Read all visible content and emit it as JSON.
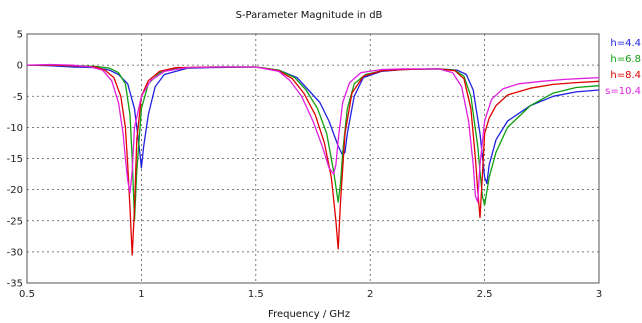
{
  "chart_data": {
    "type": "line",
    "title": "S-Parameter Magnitude in dB",
    "xlabel": "Frequency / GHz",
    "ylabel": "",
    "xlim": [
      0.5,
      3
    ],
    "ylim": [
      -35,
      5
    ],
    "xticks": [
      0.5,
      1,
      1.5,
      2,
      2.5,
      3
    ],
    "xtick_labels": [
      "0.5",
      "1",
      "1.5",
      "2",
      "2.5",
      "3"
    ],
    "yticks": [
      5,
      0,
      -5,
      -10,
      -15,
      -20,
      -25,
      -30,
      -35
    ],
    "ytick_labels": [
      "5",
      "0",
      "-5",
      "-10",
      "-15",
      "-20",
      "-25",
      "-30",
      "-35"
    ],
    "grid": true,
    "legend_position": "right",
    "series": [
      {
        "name": "h=4.4",
        "color": "#2020e0",
        "x": [
          0.5,
          0.6,
          0.7,
          0.8,
          0.86,
          0.9,
          0.94,
          0.97,
          0.99,
          1.0,
          1.01,
          1.03,
          1.06,
          1.1,
          1.2,
          1.3,
          1.5,
          1.6,
          1.68,
          1.73,
          1.78,
          1.82,
          1.86,
          1.88,
          1.89,
          1.9,
          1.93,
          1.97,
          2.05,
          2.15,
          2.3,
          2.38,
          2.42,
          2.45,
          2.48,
          2.5,
          2.51,
          2.52,
          2.55,
          2.6,
          2.7,
          2.8,
          2.9,
          3.0
        ],
        "y": [
          0,
          -0.1,
          -0.3,
          -0.4,
          -0.8,
          -1.5,
          -3,
          -7,
          -13,
          -16.5,
          -13,
          -8,
          -3.5,
          -1.5,
          -0.5,
          -0.4,
          -0.3,
          -0.8,
          -2,
          -4,
          -6,
          -9,
          -13,
          -14.5,
          -14,
          -11,
          -5,
          -2,
          -1,
          -0.7,
          -0.6,
          -0.8,
          -1.5,
          -4,
          -11,
          -18,
          -19,
          -16,
          -12,
          -9,
          -6.5,
          -5,
          -4.3,
          -4
        ]
      },
      {
        "name": "h=6.8",
        "color": "#10a010",
        "x": [
          0.5,
          0.6,
          0.7,
          0.8,
          0.86,
          0.9,
          0.93,
          0.95,
          0.96,
          0.97,
          0.98,
          1.0,
          1.03,
          1.08,
          1.15,
          1.3,
          1.5,
          1.6,
          1.67,
          1.72,
          1.77,
          1.81,
          1.84,
          1.86,
          1.87,
          1.88,
          1.9,
          1.93,
          1.98,
          2.05,
          2.15,
          2.3,
          2.37,
          2.41,
          2.44,
          2.47,
          2.49,
          2.5,
          2.52,
          2.55,
          2.6,
          2.7,
          2.8,
          2.9,
          3.0
        ],
        "y": [
          0,
          0,
          -0.1,
          -0.2,
          -0.5,
          -1.2,
          -3,
          -8,
          -15,
          -25,
          -17,
          -7,
          -3,
          -1.2,
          -0.5,
          -0.3,
          -0.3,
          -0.8,
          -2,
          -4,
          -7,
          -11,
          -17,
          -22,
          -19,
          -14,
          -7,
          -3,
          -1.5,
          -0.9,
          -0.7,
          -0.6,
          -0.8,
          -1.8,
          -5,
          -13,
          -21,
          -22.5,
          -18,
          -14,
          -10,
          -6.5,
          -4.5,
          -3.6,
          -3.3
        ]
      },
      {
        "name": "h=8.4",
        "color": "#e00000",
        "x": [
          0.5,
          0.6,
          0.7,
          0.8,
          0.84,
          0.88,
          0.91,
          0.93,
          0.94,
          0.95,
          0.96,
          0.97,
          0.98,
          1.0,
          1.03,
          1.08,
          1.15,
          1.3,
          1.5,
          1.6,
          1.66,
          1.71,
          1.76,
          1.8,
          1.83,
          1.85,
          1.86,
          1.87,
          1.89,
          1.92,
          1.97,
          2.05,
          2.15,
          2.3,
          2.37,
          2.41,
          2.44,
          2.46,
          2.47,
          2.48,
          2.49,
          2.5,
          2.52,
          2.55,
          2.6,
          2.7,
          2.8,
          2.9,
          3.0
        ],
        "y": [
          0,
          0,
          -0.1,
          -0.3,
          -0.8,
          -2,
          -5,
          -10,
          -16,
          -23,
          -30.5,
          -23,
          -12,
          -5,
          -2.5,
          -1,
          -0.4,
          -0.3,
          -0.3,
          -0.9,
          -2.2,
          -4.5,
          -8,
          -12.5,
          -18,
          -25,
          -29.5,
          -22,
          -11,
          -4.5,
          -1.8,
          -0.9,
          -0.7,
          -0.6,
          -0.9,
          -2.2,
          -7,
          -15,
          -20,
          -24.5,
          -18,
          -11,
          -8.5,
          -6.5,
          -4.8,
          -3.7,
          -3.1,
          -2.8,
          -2.6
        ]
      },
      {
        "name": "s=10.4",
        "color": "#e020e0",
        "x": [
          0.5,
          0.6,
          0.7,
          0.78,
          0.83,
          0.87,
          0.9,
          0.92,
          0.93,
          0.94,
          0.95,
          0.96,
          0.97,
          1.0,
          1.04,
          1.1,
          1.2,
          1.35,
          1.5,
          1.6,
          1.65,
          1.7,
          1.75,
          1.79,
          1.82,
          1.84,
          1.85,
          1.86,
          1.88,
          1.91,
          1.96,
          2.05,
          2.15,
          2.3,
          2.36,
          2.4,
          2.43,
          2.45,
          2.46,
          2.47,
          2.48,
          2.5,
          2.53,
          2.58,
          2.65,
          2.75,
          2.85,
          2.95,
          3.0
        ],
        "y": [
          0,
          0.1,
          0,
          -0.3,
          -0.8,
          -2.5,
          -6,
          -11,
          -15,
          -18.5,
          -20.5,
          -17,
          -10,
          -5,
          -2.5,
          -1,
          -0.4,
          -0.3,
          -0.3,
          -1,
          -2.5,
          -5,
          -9,
          -13,
          -16.5,
          -17.5,
          -16,
          -12,
          -6,
          -2.8,
          -1.2,
          -0.7,
          -0.6,
          -0.6,
          -1.2,
          -3.5,
          -9,
          -16,
          -21,
          -22,
          -16,
          -9,
          -5.5,
          -3.8,
          -3,
          -2.6,
          -2.3,
          -2.1,
          -2
        ]
      }
    ]
  }
}
